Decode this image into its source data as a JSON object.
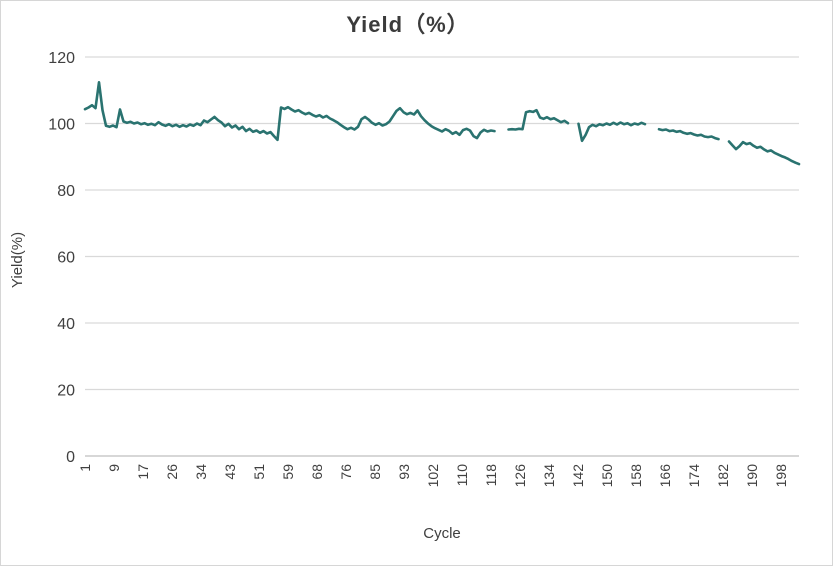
{
  "chart_data": {
    "type": "line",
    "title": "Yield（%）",
    "xlabel": "Cycle",
    "ylabel": "Yield(%)",
    "ylim": [
      0,
      120
    ],
    "yticks": [
      0,
      20,
      40,
      60,
      80,
      100,
      120
    ],
    "xtick_labels": [
      "1",
      "9",
      "17",
      "26",
      "34",
      "43",
      "51",
      "59",
      "68",
      "76",
      "85",
      "93",
      "102",
      "110",
      "118",
      "126",
      "134",
      "142",
      "150",
      "158",
      "166",
      "174",
      "182",
      "190",
      "198"
    ],
    "grid": "horizontal",
    "legend": "none",
    "series": [
      {
        "name": "Yield",
        "x_note": "cycle index 1..205, null = missing data gap",
        "values": [
          104.3,
          104.8,
          105.5,
          104.6,
          112.4,
          104.0,
          99.3,
          99.0,
          99.4,
          98.9,
          104.2,
          100.6,
          100.2,
          100.5,
          100.0,
          100.3,
          99.8,
          100.1,
          99.6,
          99.9,
          99.5,
          100.4,
          99.7,
          99.3,
          99.8,
          99.2,
          99.6,
          99.0,
          99.5,
          99.1,
          99.7,
          99.3,
          100.0,
          99.5,
          100.9,
          100.4,
          101.2,
          102.0,
          101.0,
          100.3,
          99.2,
          99.9,
          98.8,
          99.4,
          98.3,
          99.0,
          97.7,
          98.4,
          97.5,
          97.9,
          97.2,
          97.7,
          97.0,
          97.4,
          96.2,
          95.1,
          104.8,
          104.4,
          104.9,
          104.2,
          103.6,
          104.0,
          103.3,
          102.8,
          103.2,
          102.6,
          102.1,
          102.5,
          101.8,
          102.3,
          101.5,
          101.0,
          100.4,
          99.6,
          98.9,
          98.3,
          98.7,
          98.2,
          99.0,
          101.3,
          102.0,
          101.2,
          100.2,
          99.6,
          100.1,
          99.4,
          99.8,
          100.6,
          102.2,
          103.8,
          104.6,
          103.4,
          102.8,
          103.2,
          102.7,
          103.9,
          102.2,
          101.0,
          100.0,
          99.2,
          98.6,
          98.1,
          97.6,
          98.3,
          97.8,
          96.9,
          97.4,
          96.6,
          98.0,
          98.4,
          97.9,
          96.2,
          95.6,
          97.3,
          98.1,
          97.6,
          97.9,
          97.7,
          null,
          null,
          null,
          98.2,
          98.3,
          98.2,
          98.4,
          98.3,
          103.4,
          103.7,
          103.5,
          104.0,
          101.8,
          101.4,
          101.9,
          101.3,
          101.6,
          101.0,
          100.4,
          100.8,
          100.1,
          null,
          null,
          99.9,
          94.8,
          96.5,
          98.9,
          99.6,
          99.2,
          99.8,
          99.5,
          100.0,
          99.6,
          100.2,
          99.7,
          100.3,
          99.8,
          100.1,
          99.5,
          100.0,
          99.7,
          100.2,
          99.8,
          null,
          null,
          null,
          98.3,
          98.0,
          98.2,
          97.7,
          97.9,
          97.5,
          97.7,
          97.2,
          96.9,
          97.1,
          96.7,
          96.4,
          96.6,
          96.1,
          95.9,
          96.1,
          95.6,
          95.3,
          null,
          null,
          94.6,
          93.4,
          92.3,
          93.2,
          94.4,
          93.8,
          94.1,
          93.3,
          92.7,
          93.0,
          92.2,
          91.6,
          91.9,
          91.2,
          90.7,
          90.2,
          89.8,
          89.3,
          88.7,
          88.2,
          87.8
        ]
      }
    ],
    "colors": {
      "line": "#2A7370",
      "gridline": "#d9d9d9",
      "axis_line": "#bfbfbf",
      "title_text": "#3b3b3b",
      "tick_text": "#404040",
      "background": "#ffffff"
    }
  }
}
